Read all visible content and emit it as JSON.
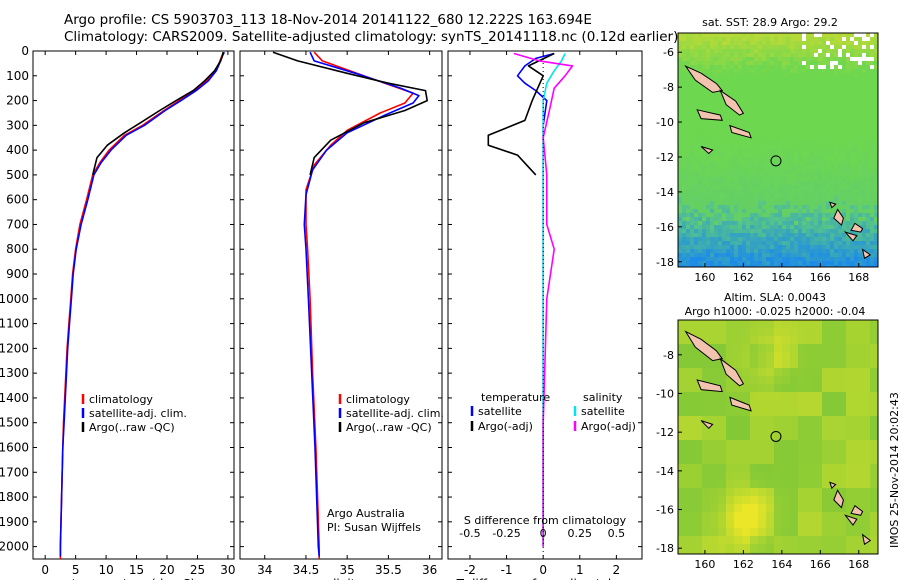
{
  "header": {
    "title_line1": "Argo profile: CS 5903703_113 18-Nov-2014 20141122_680 12.222S 163.694E",
    "title_line2": "Climatology: CARS2009. Satellite-adjusted climatology: synTS_20141118.nc (0.12d earlier)"
  },
  "colors": {
    "climatology": "#ff0000",
    "satellite": "#0000ff",
    "argo": "#000000",
    "sal_satellite": "#00e5ee",
    "sal_argo": "#ff00ff",
    "land": "#f2c4b0"
  },
  "depth_axis": {
    "ylim": [
      0,
      2050
    ],
    "ticks": [
      0,
      100,
      200,
      300,
      400,
      500,
      600,
      700,
      800,
      900,
      1000,
      1100,
      1200,
      1300,
      1400,
      1500,
      1600,
      1700,
      1800,
      1900,
      2000
    ]
  },
  "chart_data": [
    {
      "type": "line",
      "name": "temperature-profile",
      "xlabel": "temperature (deg C)",
      "xlim": [
        -2,
        31
      ],
      "xticks": [
        0,
        5,
        10,
        15,
        20,
        25,
        30
      ],
      "legend": [
        "climatology",
        "satellite-adj. clim.",
        "Argo(..raw -QC)"
      ],
      "series": [
        {
          "name": "climatology",
          "color": "red",
          "points": [
            [
              29.3,
              5
            ],
            [
              29.0,
              20
            ],
            [
              28.7,
              40
            ],
            [
              28.0,
              80
            ],
            [
              26.5,
              120
            ],
            [
              24.5,
              160
            ],
            [
              22.0,
              200
            ],
            [
              19.5,
              240
            ],
            [
              16.0,
              300
            ],
            [
              13.0,
              340
            ],
            [
              10.5,
              400
            ],
            [
              9.0,
              450
            ],
            [
              7.8,
              500
            ],
            [
              6.8,
              600
            ],
            [
              5.7,
              700
            ],
            [
              5.0,
              800
            ],
            [
              4.5,
              900
            ],
            [
              4.2,
              1000
            ],
            [
              3.9,
              1100
            ],
            [
              3.6,
              1200
            ],
            [
              3.4,
              1300
            ],
            [
              3.2,
              1400
            ],
            [
              3.0,
              1500
            ],
            [
              2.9,
              1600
            ],
            [
              2.8,
              1700
            ],
            [
              2.7,
              1800
            ],
            [
              2.6,
              1900
            ],
            [
              2.5,
              2000
            ],
            [
              2.5,
              2050
            ]
          ]
        },
        {
          "name": "satellite",
          "color": "blue",
          "points": [
            [
              29.4,
              5
            ],
            [
              29.1,
              20
            ],
            [
              28.8,
              40
            ],
            [
              28.1,
              80
            ],
            [
              26.8,
              120
            ],
            [
              24.8,
              160
            ],
            [
              22.3,
              200
            ],
            [
              19.7,
              240
            ],
            [
              16.3,
              300
            ],
            [
              13.3,
              340
            ],
            [
              10.8,
              400
            ],
            [
              9.2,
              450
            ],
            [
              8.0,
              500
            ],
            [
              7.0,
              600
            ],
            [
              5.9,
              700
            ],
            [
              5.1,
              800
            ],
            [
              4.6,
              900
            ],
            [
              4.3,
              1000
            ],
            [
              4.0,
              1100
            ],
            [
              3.7,
              1200
            ],
            [
              3.5,
              1300
            ],
            [
              3.3,
              1400
            ],
            [
              3.1,
              1500
            ],
            [
              2.9,
              1600
            ],
            [
              2.8,
              1700
            ],
            [
              2.7,
              1800
            ],
            [
              2.6,
              1900
            ],
            [
              2.5,
              2000
            ],
            [
              2.5,
              2040
            ]
          ]
        },
        {
          "name": "argo",
          "color": "black",
          "points": [
            [
              29.2,
              5
            ],
            [
              29.1,
              20
            ],
            [
              28.8,
              40
            ],
            [
              27.8,
              80
            ],
            [
              26.2,
              120
            ],
            [
              24.3,
              160
            ],
            [
              21.5,
              200
            ],
            [
              18.8,
              240
            ],
            [
              15.6,
              290
            ],
            [
              13.0,
              330
            ],
            [
              10.2,
              380
            ],
            [
              8.5,
              430
            ],
            [
              7.8,
              500
            ]
          ]
        }
      ]
    },
    {
      "type": "line",
      "name": "salinity-profile",
      "xlabel": "salinity",
      "xlim": [
        33.7,
        36.15
      ],
      "xticks": [
        34,
        34.5,
        35,
        35.5,
        36
      ],
      "legend": [
        "climatology",
        "satellite-adj. clim.",
        "Argo(..raw -QC)"
      ],
      "annotation": [
        "Argo Australia",
        "PI: Susan Wijffels"
      ],
      "series": [
        {
          "name": "climatology",
          "color": "red",
          "points": [
            [
              34.6,
              5
            ],
            [
              34.7,
              40
            ],
            [
              35.2,
              100
            ],
            [
              35.8,
              170
            ],
            [
              35.7,
              210
            ],
            [
              35.4,
              250
            ],
            [
              35.0,
              320
            ],
            [
              34.8,
              380
            ],
            [
              34.6,
              460
            ],
            [
              34.5,
              560
            ],
            [
              34.5,
              700
            ],
            [
              34.52,
              800
            ],
            [
              34.55,
              1000
            ],
            [
              34.58,
              1300
            ],
            [
              34.62,
              1600
            ],
            [
              34.66,
              2000
            ],
            [
              34.66,
              2050
            ]
          ]
        },
        {
          "name": "satellite",
          "color": "blue",
          "points": [
            [
              34.55,
              5
            ],
            [
              34.6,
              40
            ],
            [
              35.1,
              90
            ],
            [
              35.65,
              150
            ],
            [
              35.87,
              180
            ],
            [
              35.8,
              210
            ],
            [
              35.45,
              260
            ],
            [
              35.0,
              330
            ],
            [
              34.75,
              400
            ],
            [
              34.58,
              480
            ],
            [
              34.5,
              580
            ],
            [
              34.48,
              700
            ],
            [
              34.5,
              800
            ],
            [
              34.53,
              1000
            ],
            [
              34.57,
              1300
            ],
            [
              34.61,
              1600
            ],
            [
              34.65,
              2000
            ],
            [
              34.66,
              2040
            ]
          ]
        },
        {
          "name": "argo",
          "color": "black",
          "points": [
            [
              34.1,
              5
            ],
            [
              34.4,
              40
            ],
            [
              35.0,
              90
            ],
            [
              35.5,
              130
            ],
            [
              35.95,
              160
            ],
            [
              35.97,
              200
            ],
            [
              35.7,
              240
            ],
            [
              35.2,
              290
            ],
            [
              34.8,
              360
            ],
            [
              34.6,
              430
            ],
            [
              34.55,
              500
            ]
          ]
        }
      ]
    },
    {
      "type": "line",
      "name": "difference-profile",
      "xlabel": "T difference from climatology",
      "xlabel_top": "S difference from climatology",
      "xlim": [
        -2.6,
        2.7
      ],
      "xticks": [
        -2,
        -1,
        0,
        1,
        2
      ],
      "top_ticks": [
        "-0.5",
        "-0.25",
        "0",
        "0.25",
        "0.5"
      ],
      "legend_titles": [
        "temperature",
        "salinity"
      ],
      "legend_temperature": [
        "satellite",
        "Argo(-adj)"
      ],
      "legend_salinity": [
        "satellite",
        "Argo(-adj)"
      ],
      "series": [
        {
          "name": "T satellite",
          "color": "blue",
          "points": [
            [
              0.3,
              10
            ],
            [
              -0.2,
              30
            ],
            [
              -0.5,
              60
            ],
            [
              -0.7,
              100
            ],
            [
              -0.5,
              130
            ],
            [
              -0.2,
              160
            ],
            [
              0.1,
              200
            ],
            [
              0.0,
              300
            ],
            [
              0.0,
              500
            ],
            [
              0.0,
              1000
            ],
            [
              0.0,
              2000
            ]
          ]
        },
        {
          "name": "T argo",
          "color": "black",
          "points": [
            [
              0.3,
              10
            ],
            [
              -0.4,
              60
            ],
            [
              0.0,
              100
            ],
            [
              -0.3,
              200
            ],
            [
              -0.5,
              280
            ],
            [
              -1.5,
              340
            ],
            [
              -1.5,
              380
            ],
            [
              -0.7,
              420
            ],
            [
              -0.2,
              500
            ]
          ]
        },
        {
          "name": "S satellite",
          "color": "cyan",
          "points": [
            [
              0.6,
              10
            ],
            [
              0.5,
              40
            ],
            [
              0.3,
              80
            ],
            [
              0.1,
              130
            ],
            [
              0.0,
              200
            ],
            [
              0.0,
              300
            ],
            [
              0.0,
              400
            ],
            [
              0.0,
              700
            ],
            [
              0.0,
              1000
            ],
            [
              0.0,
              1500
            ],
            [
              0.0,
              2000
            ]
          ]
        },
        {
          "name": "S argo",
          "color": "magenta",
          "points": [
            [
              -0.8,
              10
            ],
            [
              -0.1,
              40
            ],
            [
              0.8,
              60
            ],
            [
              0.6,
              100
            ],
            [
              0.3,
              150
            ],
            [
              0.2,
              220
            ],
            [
              0.0,
              350
            ],
            [
              0.1,
              500
            ],
            [
              0.1,
              700
            ],
            [
              0.3,
              800
            ],
            [
              0.1,
              1000
            ],
            [
              0.0,
              1500
            ],
            [
              0.0,
              2000
            ]
          ]
        }
      ]
    },
    {
      "type": "heatmap",
      "name": "sst-map",
      "title": "sat. SST: 28.9 Argo: 29.2",
      "xticks": [
        160,
        162,
        164,
        166,
        168
      ],
      "yticks": [
        -6,
        -8,
        -10,
        -12,
        -14,
        -16,
        -18
      ],
      "xlim": [
        158.6,
        169.0
      ],
      "ylim": [
        -18.3,
        -4.9
      ],
      "argo_position": [
        163.694,
        -12.222
      ]
    },
    {
      "type": "heatmap",
      "name": "sla-map",
      "title_line1": "Altim. SLA: 0.0043",
      "title_line2": "Argo h1000: -0.025 h2000: -0.04",
      "xticks": [
        160,
        162,
        164,
        166,
        168
      ],
      "yticks": [
        -8,
        -10,
        -12,
        -14,
        -16,
        -18
      ],
      "xlim": [
        158.6,
        169.0
      ],
      "ylim": [
        -18.3,
        -6.2
      ],
      "argo_position": [
        163.694,
        -12.222
      ]
    }
  ],
  "footer": {
    "stamp": "IMOS 25-Nov-2014 20:02:43"
  }
}
